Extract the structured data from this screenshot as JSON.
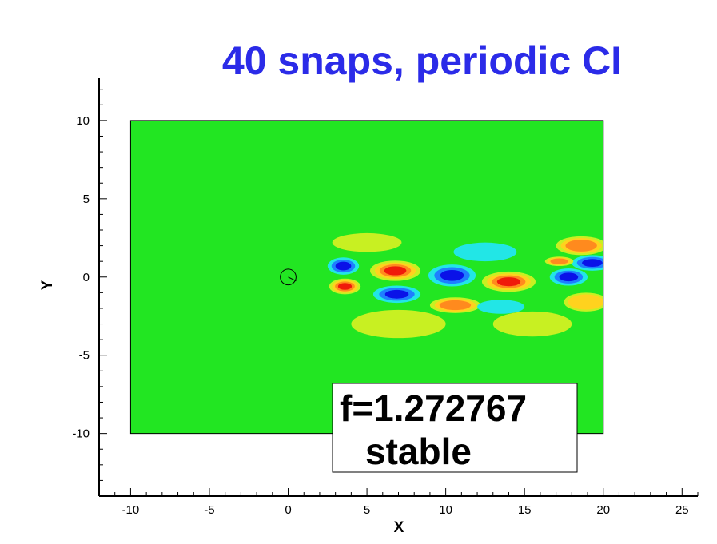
{
  "chart_data": {
    "type": "heatmap",
    "title": "40 snaps, periodic CI",
    "xlabel": "X",
    "ylabel": "Y",
    "xlim": [
      -12,
      26
    ],
    "ylim": [
      -14,
      12.7
    ],
    "x_ticks": [
      -10,
      -5,
      0,
      5,
      10,
      15,
      20,
      25
    ],
    "y_ticks": [
      -10,
      -5,
      0,
      5,
      10
    ],
    "domain": {
      "x": [
        -10,
        20
      ],
      "y": [
        -10,
        10
      ]
    },
    "cylinder": {
      "x": 0,
      "y": 0,
      "r": 0.5
    },
    "annotation": {
      "line1": "f=1.272767",
      "line2": "stable"
    },
    "colors": {
      "title": "#2b2be8",
      "background_field": "#22e622",
      "scale": [
        "#0a12e8",
        "#1e7fff",
        "#22e6e6",
        "#22e622",
        "#c8f022",
        "#ffd21e",
        "#ff8a1e",
        "#f01a0a"
      ]
    },
    "blobs": [
      {
        "x": 3.5,
        "y": 0.7,
        "rx": 1.0,
        "ry": 0.55,
        "sign": -1,
        "amp": 1.0
      },
      {
        "x": 3.6,
        "y": -0.6,
        "rx": 1.0,
        "ry": 0.5,
        "sign": 1,
        "amp": 1.0
      },
      {
        "x": 6.8,
        "y": 0.4,
        "rx": 1.6,
        "ry": 0.65,
        "sign": 1,
        "amp": 1.0
      },
      {
        "x": 6.9,
        "y": -1.1,
        "rx": 1.5,
        "ry": 0.55,
        "sign": -1,
        "amp": 1.0
      },
      {
        "x": 10.4,
        "y": 0.1,
        "rx": 1.5,
        "ry": 0.7,
        "sign": -1,
        "amp": 1.0
      },
      {
        "x": 10.6,
        "y": -1.8,
        "rx": 1.6,
        "ry": 0.5,
        "sign": 1,
        "amp": 0.7
      },
      {
        "x": 14.0,
        "y": -0.3,
        "rx": 1.7,
        "ry": 0.65,
        "sign": 1,
        "amp": 1.0
      },
      {
        "x": 13.5,
        "y": -1.9,
        "rx": 1.5,
        "ry": 0.45,
        "sign": -1,
        "amp": 0.35
      },
      {
        "x": 17.8,
        "y": 0.0,
        "rx": 1.2,
        "ry": 0.55,
        "sign": -1,
        "amp": 0.85
      },
      {
        "x": 19.3,
        "y": 0.9,
        "rx": 1.3,
        "ry": 0.5,
        "sign": -1,
        "amp": 1.0
      },
      {
        "x": 17.2,
        "y": 1.0,
        "rx": 0.9,
        "ry": 0.3,
        "sign": 1,
        "amp": 0.8
      },
      {
        "x": 18.6,
        "y": 2.0,
        "rx": 1.6,
        "ry": 0.6,
        "sign": 1,
        "amp": 0.7
      },
      {
        "x": 18.9,
        "y": -1.6,
        "rx": 1.4,
        "ry": 0.6,
        "sign": 1,
        "amp": 0.45
      },
      {
        "x": 5.0,
        "y": 2.2,
        "rx": 2.2,
        "ry": 0.6,
        "sign": 1,
        "amp": 0.25
      },
      {
        "x": 7.0,
        "y": -3.0,
        "rx": 3.0,
        "ry": 0.9,
        "sign": 1,
        "amp": 0.22
      },
      {
        "x": 12.5,
        "y": 1.6,
        "rx": 2.0,
        "ry": 0.6,
        "sign": -1,
        "amp": 0.25
      },
      {
        "x": 15.5,
        "y": -3.0,
        "rx": 2.5,
        "ry": 0.8,
        "sign": 1,
        "amp": 0.18
      }
    ]
  }
}
